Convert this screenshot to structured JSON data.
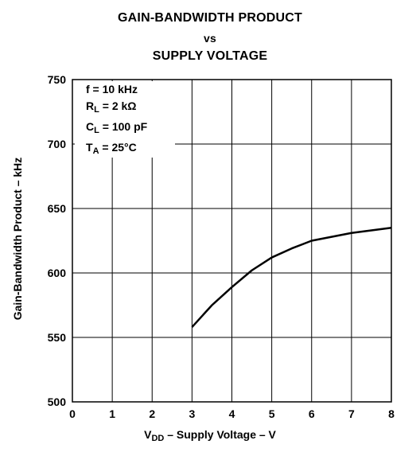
{
  "chart_data": {
    "type": "line",
    "title_lines": [
      "GAIN-BANDWIDTH PRODUCT",
      "vs",
      "SUPPLY VOLTAGE"
    ],
    "xlabel": {
      "main": "V",
      "sub": "DD",
      "rest": " – Supply Voltage – V"
    },
    "ylabel": "Gain-Bandwidth Product – kHz",
    "xlim": [
      0,
      8
    ],
    "ylim": [
      500,
      750
    ],
    "xticks": [
      0,
      1,
      2,
      3,
      4,
      5,
      6,
      7,
      8
    ],
    "yticks": [
      500,
      550,
      600,
      650,
      700,
      750
    ],
    "grid": true,
    "conditions": [
      {
        "main": "f = 10 kHz",
        "sub": "",
        "rest": ""
      },
      {
        "main": "R",
        "sub": "L",
        "rest": " = 2 kΩ"
      },
      {
        "main": "C",
        "sub": "L",
        "rest": " = 100 pF"
      },
      {
        "main": "T",
        "sub": "A",
        "rest": " = 25°C"
      }
    ],
    "series": [
      {
        "x": [
          3,
          3.5,
          4,
          4.5,
          5,
          5.5,
          6,
          6.5,
          7,
          7.5,
          8
        ],
        "values": [
          558,
          575,
          589,
          602,
          612,
          619,
          625,
          628,
          631,
          633,
          635
        ]
      }
    ],
    "line_color": "#000000"
  }
}
